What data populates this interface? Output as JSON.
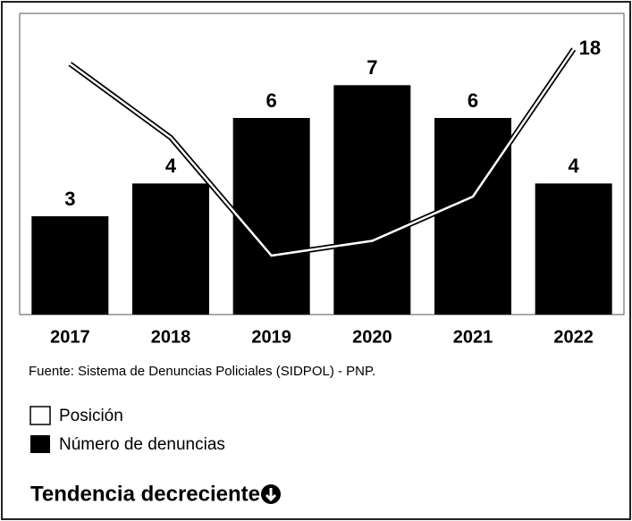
{
  "chart_data": {
    "type": "bar",
    "categories": [
      "2017",
      "2018",
      "2019",
      "2020",
      "2021",
      "2022"
    ],
    "series": [
      {
        "name": "Posición",
        "type": "line",
        "axis": "y2",
        "color": "#ffffff",
        "values": [
          17,
          12,
          4,
          5,
          8,
          18
        ]
      },
      {
        "name": "Número de denuncias",
        "type": "bar",
        "color": "#000000",
        "values": [
          3,
          4,
          6,
          7,
          6,
          4
        ]
      }
    ],
    "ylim": [
      0,
      9
    ],
    "y2lim": [
      0,
      20
    ],
    "source": "Fuente: Sistema de Denuncias Policiales (SIDPOL) - PNP.",
    "note": "Tendencia decreciente"
  }
}
